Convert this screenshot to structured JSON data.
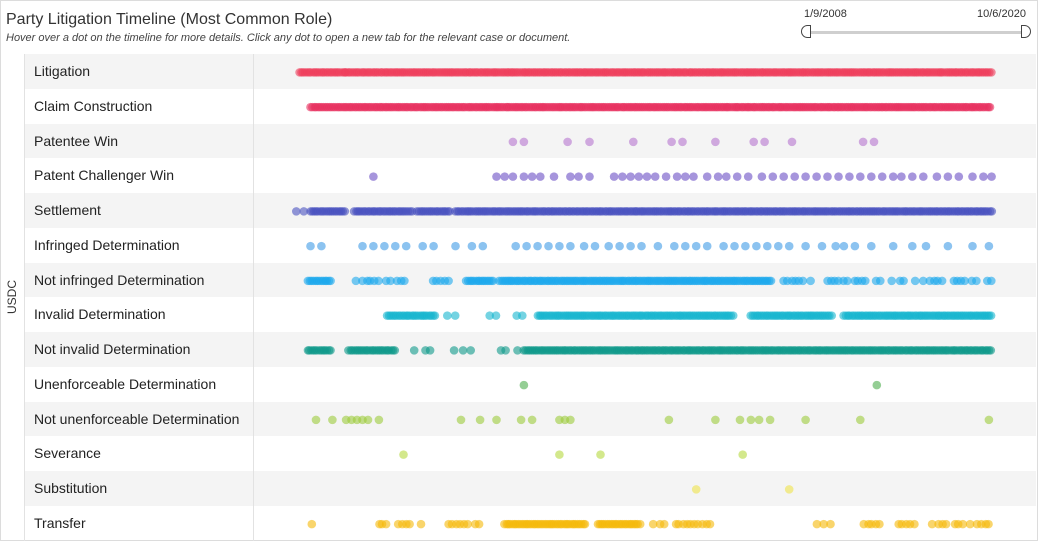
{
  "header": {
    "title": "Party Litigation Timeline (Most Common Role)",
    "subtitle": "Hover over a dot on the timeline for more details. Click any dot to open a new tab for the relevant case or document."
  },
  "range": {
    "start_label": "1/9/2008",
    "end_label": "10/6/2020"
  },
  "chart_data": {
    "type": "scatter",
    "title": "Party Litigation Timeline (Most Common Role)",
    "group": "USDC",
    "x_range": [
      "2008-01-09",
      "2020-10-06"
    ],
    "grid": false,
    "series": [
      {
        "name": "Litigation",
        "color": "#ee3d5b",
        "alpha": 0.6,
        "points": [
          [
            2008.15,
            2009.0,
            "dense"
          ],
          [
            2009.0,
            2020.82,
            "dense"
          ]
        ]
      },
      {
        "name": "Claim Construction",
        "color": "#e8305f",
        "alpha": 0.6,
        "points": [
          [
            2008.35,
            2020.8,
            "dense"
          ]
        ]
      },
      {
        "name": "Patentee Win",
        "color": "#b574cf",
        "alpha": 0.6,
        "x": [
          2012.05,
          2012.25,
          2013.05,
          2013.45,
          2014.25,
          2014.95,
          2015.15,
          2015.75,
          2016.45,
          2016.65,
          2017.15,
          2018.45,
          2018.65
        ]
      },
      {
        "name": "Patent Challenger Win",
        "color": "#6b4fc4",
        "alpha": 0.6,
        "x": [
          2009.5,
          2011.75,
          2011.9,
          2012.05,
          2012.25,
          2012.4,
          2012.55,
          2012.8,
          2013.1,
          2013.25,
          2013.45,
          2013.9,
          2014.05,
          2014.2,
          2014.35,
          2014.5,
          2014.65,
          2014.85,
          2015.05,
          2015.2,
          2015.35,
          2015.6,
          2015.8,
          2015.95,
          2016.15,
          2016.35,
          2016.6,
          2016.8,
          2017.0,
          2017.2,
          2017.4,
          2017.6,
          2017.8,
          2018.0,
          2018.2,
          2018.4,
          2018.6,
          2018.8,
          2019.0,
          2019.15,
          2019.35,
          2019.55,
          2019.8,
          2020.0,
          2020.2,
          2020.45,
          2020.65,
          2020.8
        ]
      },
      {
        "name": "Settlement",
        "color": "#4a52c0",
        "alpha": 0.6,
        "points": [
          [
            2008.1,
            2008.25,
            "sparse"
          ],
          [
            2008.35,
            2009.0,
            "dense"
          ],
          [
            2009.15,
            2010.2,
            "dense"
          ],
          [
            2010.3,
            2010.9,
            "dense"
          ],
          [
            2011.0,
            2020.8,
            "dense"
          ]
        ]
      },
      {
        "name": "Infringed Determination",
        "color": "#3f9be6",
        "alpha": 0.6,
        "x": [
          2008.35,
          2008.55,
          2009.3,
          2009.5,
          2009.7,
          2009.9,
          2010.1,
          2010.4,
          2010.6,
          2011.0,
          2011.3,
          2011.5,
          2012.1,
          2012.3,
          2012.5,
          2012.7,
          2012.9,
          2013.1,
          2013.35,
          2013.55,
          2013.8,
          2014.0,
          2014.2,
          2014.4,
          2014.7,
          2015.0,
          2015.2,
          2015.4,
          2015.6,
          2015.9,
          2016.1,
          2016.3,
          2016.5,
          2016.7,
          2016.9,
          2017.1,
          2017.4,
          2017.7,
          2017.95,
          2018.1,
          2018.3,
          2018.6,
          2019.0,
          2019.35,
          2019.6,
          2020.0,
          2020.45,
          2020.75
        ]
      },
      {
        "name": "Not infringed Determination",
        "color": "#1da8ec",
        "alpha": 0.6,
        "points": [
          [
            2008.3,
            2008.75,
            "dense"
          ],
          [
            2009.1,
            2010.15,
            "mixed"
          ],
          [
            2010.45,
            2010.9,
            "mixed"
          ],
          [
            2011.2,
            2011.7,
            "dense"
          ],
          [
            2011.8,
            2016.8,
            "dense"
          ],
          [
            2017.0,
            2017.5,
            "mixed"
          ],
          [
            2017.8,
            2018.5,
            "mixed"
          ],
          [
            2018.7,
            2020.8,
            "mixed"
          ]
        ]
      },
      {
        "name": "Invalid Determination",
        "color": "#18b6cf",
        "alpha": 0.6,
        "points": [
          [
            2009.75,
            2010.65,
            "dense"
          ],
          [
            2010.85,
            2011.0,
            "sparse"
          ],
          [
            2011.6,
            2011.75,
            "sparse"
          ],
          [
            2012.1,
            2012.3,
            "sparse"
          ],
          [
            2012.5,
            2016.1,
            "dense"
          ],
          [
            2016.4,
            2017.9,
            "dense"
          ],
          [
            2018.1,
            2020.8,
            "dense"
          ]
        ]
      },
      {
        "name": "Not invalid Determination",
        "color": "#0f9a8b",
        "alpha": 0.6,
        "points": [
          [
            2008.3,
            2008.75,
            "dense"
          ],
          [
            2009.05,
            2009.9,
            "dense"
          ],
          [
            2010.25,
            2010.6,
            "mixed"
          ],
          [
            2011.0,
            2011.3,
            "sparse"
          ],
          [
            2011.7,
            2012.2,
            "mixed"
          ],
          [
            2012.25,
            2020.8,
            "dense"
          ]
        ]
      },
      {
        "name": "Unenforceable Determination",
        "color": "#4cae4c",
        "alpha": 0.6,
        "x": [
          2012.25,
          2018.7
        ]
      },
      {
        "name": "Not unenforceable Determination",
        "color": "#9ccc3c",
        "alpha": 0.6,
        "x": [
          2008.45,
          2008.75,
          2009.0,
          2009.1,
          2009.2,
          2009.3,
          2009.4,
          2009.6,
          2011.1,
          2011.45,
          2011.75,
          2012.2,
          2012.4,
          2012.9,
          2013.0,
          2013.1,
          2014.9,
          2015.75,
          2016.2,
          2016.4,
          2016.55,
          2016.75,
          2017.4,
          2018.4,
          2020.75
        ]
      },
      {
        "name": "Severance",
        "color": "#b5d83f",
        "alpha": 0.6,
        "x": [
          2010.05,
          2012.9,
          2013.65,
          2016.25
        ]
      },
      {
        "name": "Substitution",
        "color": "#eee24a",
        "alpha": 0.6,
        "x": [
          2015.4,
          2017.1
        ]
      },
      {
        "name": "Transfer",
        "color": "#f5b90a",
        "alpha": 0.6,
        "points": [
          [
            2008.4,
            2008.45,
            "sparse"
          ],
          [
            2009.6,
            2010.5,
            "mixed"
          ],
          [
            2010.8,
            2011.6,
            "mixed"
          ],
          [
            2011.9,
            2013.4,
            "dense"
          ],
          [
            2013.6,
            2014.4,
            "dense"
          ],
          [
            2014.6,
            2015.7,
            "mixed"
          ],
          [
            2017.6,
            2017.95,
            "sparse"
          ],
          [
            2018.4,
            2018.75,
            "mixed"
          ],
          [
            2019.1,
            2019.5,
            "mixed"
          ],
          [
            2019.7,
            2020.8,
            "mixed"
          ]
        ]
      }
    ]
  }
}
